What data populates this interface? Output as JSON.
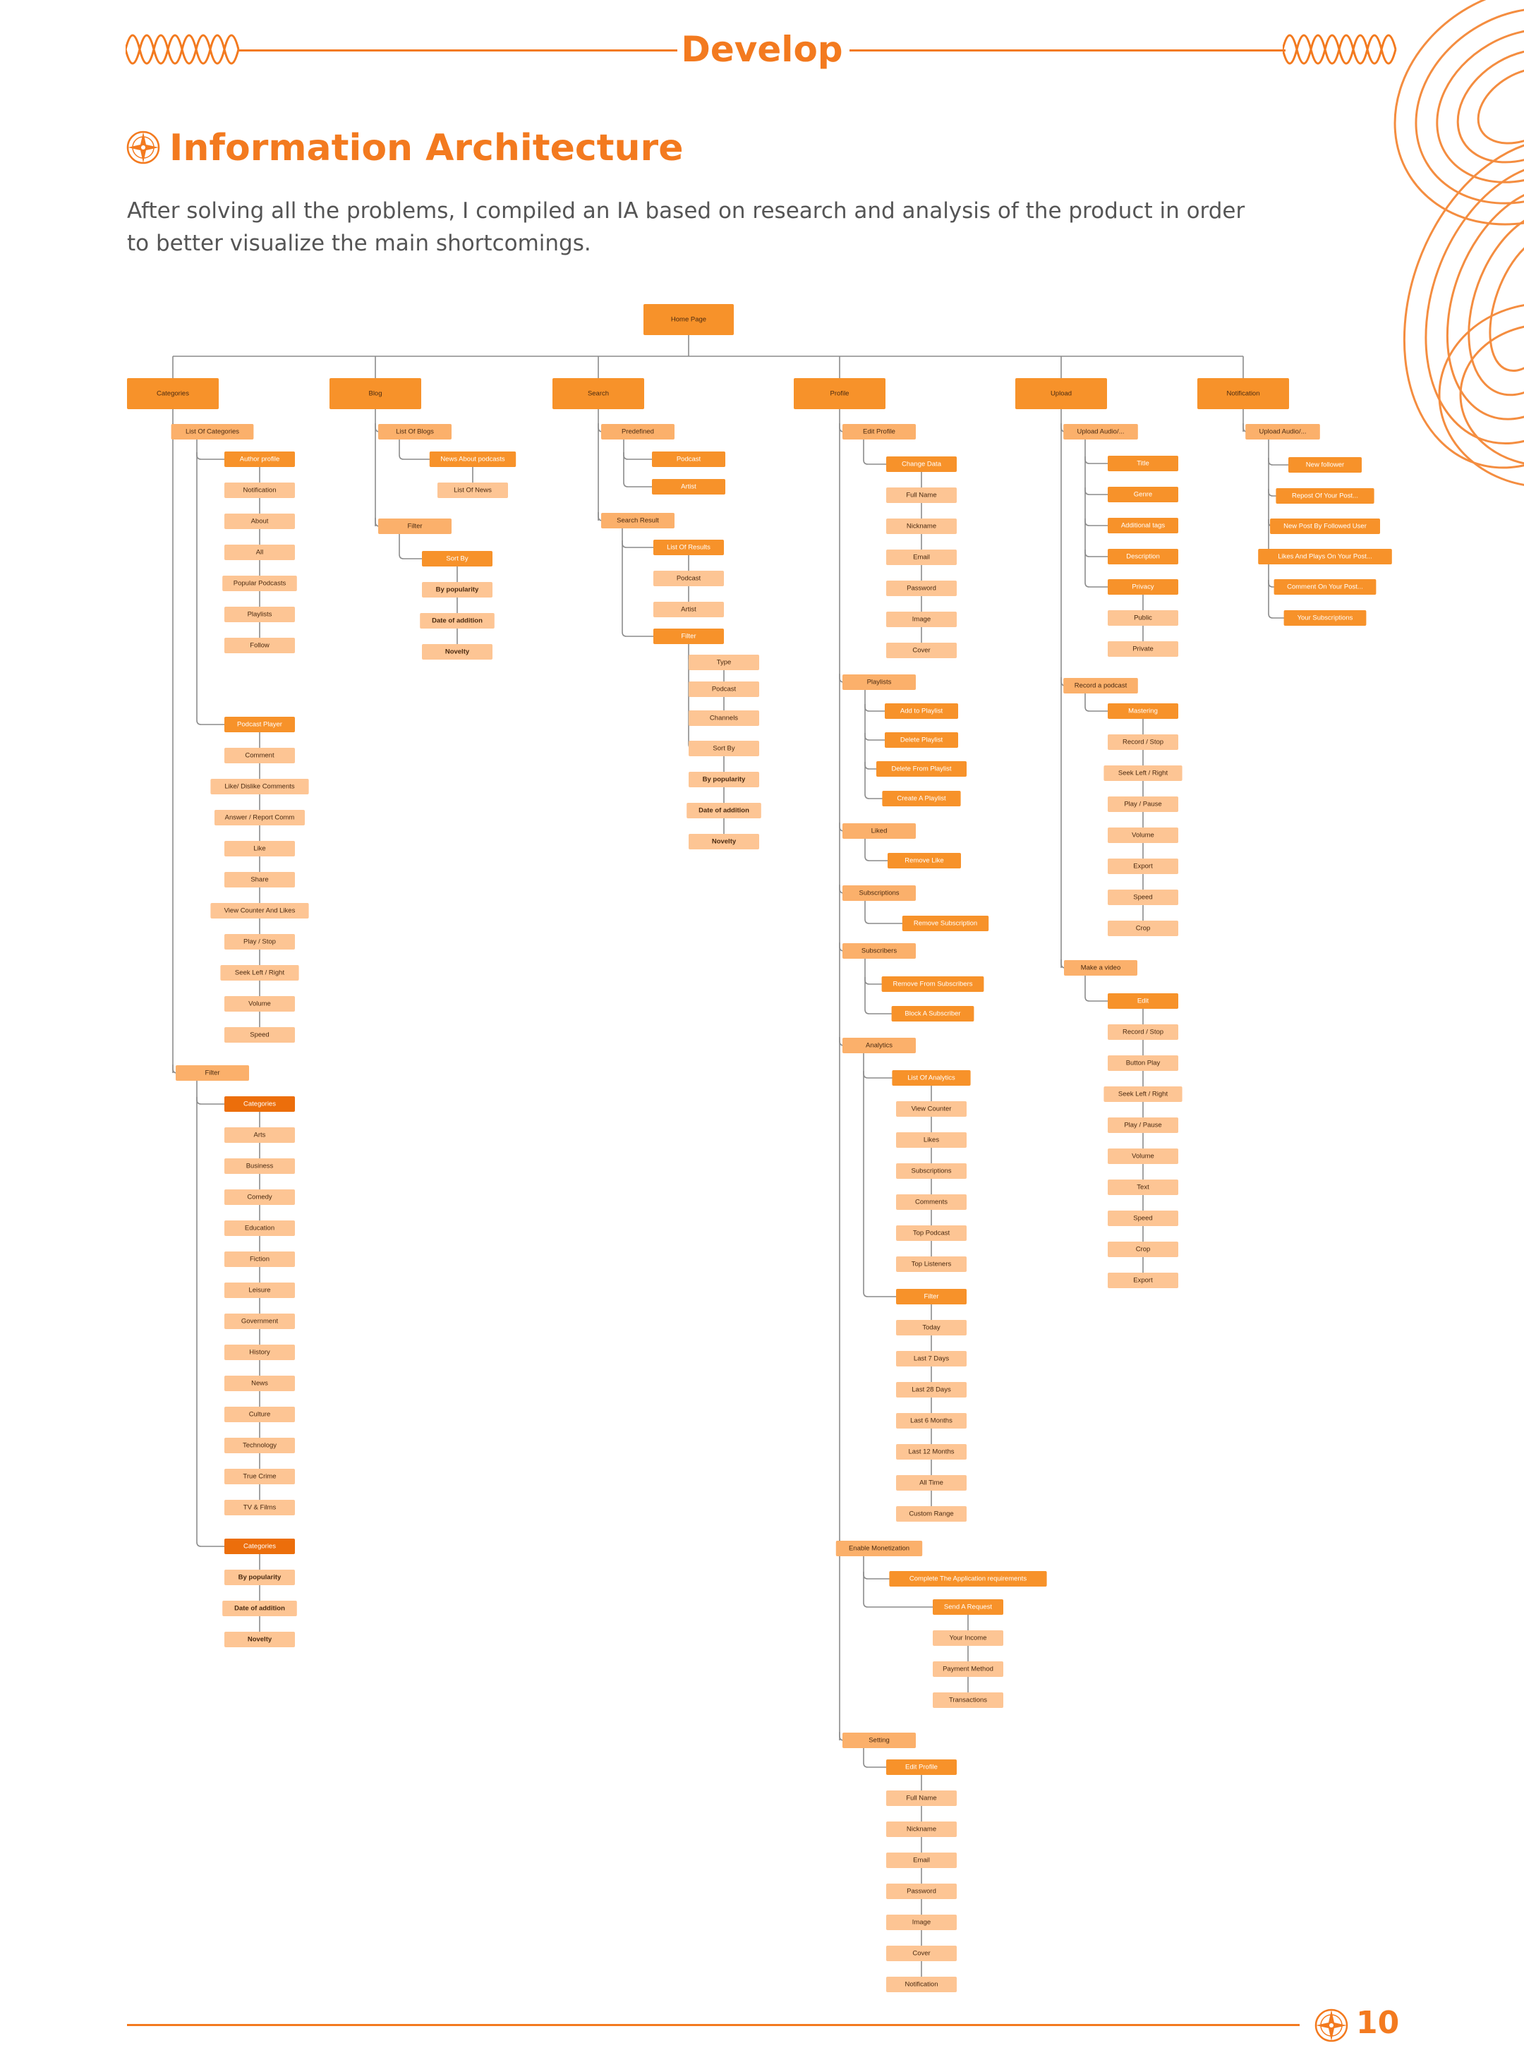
{
  "header": {
    "title": "Develop"
  },
  "section": {
    "title": "Information Architecture"
  },
  "intro": "After solving all the problems, I compiled an IA based on research and analysis of the product in order to better visualize the main shortcomings.",
  "footer": {
    "page_number": "10"
  },
  "colors": {
    "accent": "#f37a1f",
    "level1": "#f7922a",
    "level2": "#fbb06b",
    "level3": "#fdc594",
    "dark": "#ec6e0b"
  },
  "diagram": {
    "root": "Home Page",
    "columns": [
      {
        "label": "Categories",
        "children": [
          {
            "label": "List Of Categories",
            "children": [
              {
                "label": "Author profile",
                "style": "hi",
                "items": [
                  "Notification",
                  "About",
                  "All",
                  "Popular Podcasts",
                  "Playlists",
                  "Follow"
                ]
              },
              {
                "label": "Podcast Player",
                "style": "hi",
                "items": [
                  "Comment",
                  "Like/ Dislike Comments",
                  "Answer / Report Comm",
                  "Like",
                  "Share",
                  "View Counter And Likes",
                  "Play / Stop",
                  "Seek Left / Right",
                  "Volume",
                  "Speed"
                ]
              }
            ]
          },
          {
            "label": "Filter",
            "children": [
              {
                "label": "Categories",
                "style": "dark",
                "items": [
                  "Arts",
                  "Business",
                  "Comedy",
                  "Education",
                  "Fiction",
                  "Leisure",
                  "Government",
                  "History",
                  "News",
                  "Culture",
                  "Technology",
                  "True Crime",
                  "TV & Films"
                ]
              },
              {
                "label": "Categories",
                "style": "dark",
                "items": [
                  "By popularity",
                  "Date of addition",
                  "Novelty"
                ],
                "bold": true
              }
            ]
          }
        ]
      },
      {
        "label": "Blog",
        "children": [
          {
            "label": "List Of Blogs",
            "children": [
              {
                "label": "News About podcasts",
                "style": "hi",
                "items": [
                  "List Of News"
                ]
              }
            ]
          },
          {
            "label": "Filter",
            "children": [
              {
                "label": "Sort By",
                "style": "hi",
                "items": [
                  "By popularity",
                  "Date of addition",
                  "Novelty"
                ],
                "bold": true
              }
            ]
          }
        ]
      },
      {
        "label": "Search",
        "children": [
          {
            "label": "Predefined",
            "direct": [
              "Podcast",
              "Artist"
            ]
          },
          {
            "label": "Search Result",
            "children": [
              {
                "label": "List Of Results",
                "style": "hi",
                "items": [
                  "Podcast",
                  "Artist"
                ]
              },
              {
                "label": "Filter",
                "style": "hi",
                "groups": [
                  [
                    "Type",
                    "Podcast",
                    "Channels"
                  ],
                  [
                    "Sort By",
                    "By popularity",
                    "Date of addition",
                    "Novelty"
                  ]
                ]
              }
            ]
          }
        ]
      },
      {
        "label": "Profile",
        "children": [
          {
            "label": "Edit Profile",
            "children": [
              {
                "label": "Change Data",
                "style": "hi",
                "items": [
                  "Full Name",
                  "Nickname",
                  "Email",
                  "Password",
                  "Image",
                  "Cover"
                ]
              }
            ]
          },
          {
            "label": "Playlists",
            "direct": [
              "Add to Playlist",
              "Delete Playlist",
              "Delete From Playlist",
              "Create A Playlist"
            ]
          },
          {
            "label": "Liked",
            "direct": [
              "Remove Like"
            ]
          },
          {
            "label": "Subscriptions",
            "direct": [
              "Remove Subscription"
            ]
          },
          {
            "label": "Subscribers",
            "direct": [
              "Remove From Subscribers",
              "Block A Subscriber"
            ]
          },
          {
            "label": "Analytics",
            "children": [
              {
                "label": "List Of Analytics",
                "style": "hi",
                "items": [
                  "View Counter",
                  "Likes",
                  "Subscriptions",
                  "Comments",
                  "Top Podcast",
                  "Top Listeners"
                ]
              },
              {
                "label": "Filter",
                "style": "hi",
                "items": [
                  "Today",
                  "Last 7 Days",
                  "Last 28 Days",
                  "Last 6 Months",
                  "Last 12 Months",
                  "All Time",
                  "Custom Range"
                ]
              }
            ]
          },
          {
            "label": "Enable Monetization",
            "children": [
              {
                "label": "Complete The Application requirements",
                "style": "hi",
                "items": []
              },
              {
                "label": "Send A Request",
                "style": "hi",
                "items": [
                  "Your Income",
                  "Payment Method",
                  "Transactions"
                ]
              }
            ]
          },
          {
            "label": "Setting",
            "children": [
              {
                "label": "Edit Profile",
                "style": "hi",
                "items": [
                  "Full Name",
                  "Nickname",
                  "Email",
                  "Password",
                  "Image",
                  "Cover",
                  "Notification"
                ]
              }
            ]
          }
        ]
      },
      {
        "label": "Upload",
        "children": [
          {
            "label": "Upload Audio/...",
            "children": [
              {
                "label": "Title",
                "style": "hi",
                "items": []
              },
              {
                "label": "Genre",
                "style": "hi",
                "items": []
              },
              {
                "label": "Additional tags",
                "style": "hi",
                "items": []
              },
              {
                "label": "Description",
                "style": "hi",
                "items": []
              },
              {
                "label": "Privacy",
                "style": "hi",
                "items": [
                  "Public",
                  "Private"
                ]
              }
            ]
          },
          {
            "label": "Record a podcast",
            "children": [
              {
                "label": "Mastering",
                "style": "hi",
                "items": [
                  "Record / Stop",
                  "Seek Left / Right",
                  "Play / Pause",
                  "Volume",
                  "Export",
                  "Speed",
                  "Crop"
                ]
              }
            ]
          },
          {
            "label": "Make a video",
            "children": [
              {
                "label": "Edit",
                "style": "hi",
                "items": [
                  "Record / Stop",
                  "Button Play",
                  "Seek Left / Right",
                  "Play / Pause",
                  "Volume",
                  "Text",
                  "Speed",
                  "Crop",
                  "Export"
                ]
              }
            ]
          }
        ]
      },
      {
        "label": "Notification",
        "children": [
          {
            "label": "Upload Audio/...",
            "direct": [
              "New follower",
              "Repost Of Your Post...",
              "New Post By Followed User",
              "Likes And Plays On Your Post...",
              "Comment On Your Post...",
              "Your Subscriptions"
            ]
          }
        ]
      }
    ]
  }
}
